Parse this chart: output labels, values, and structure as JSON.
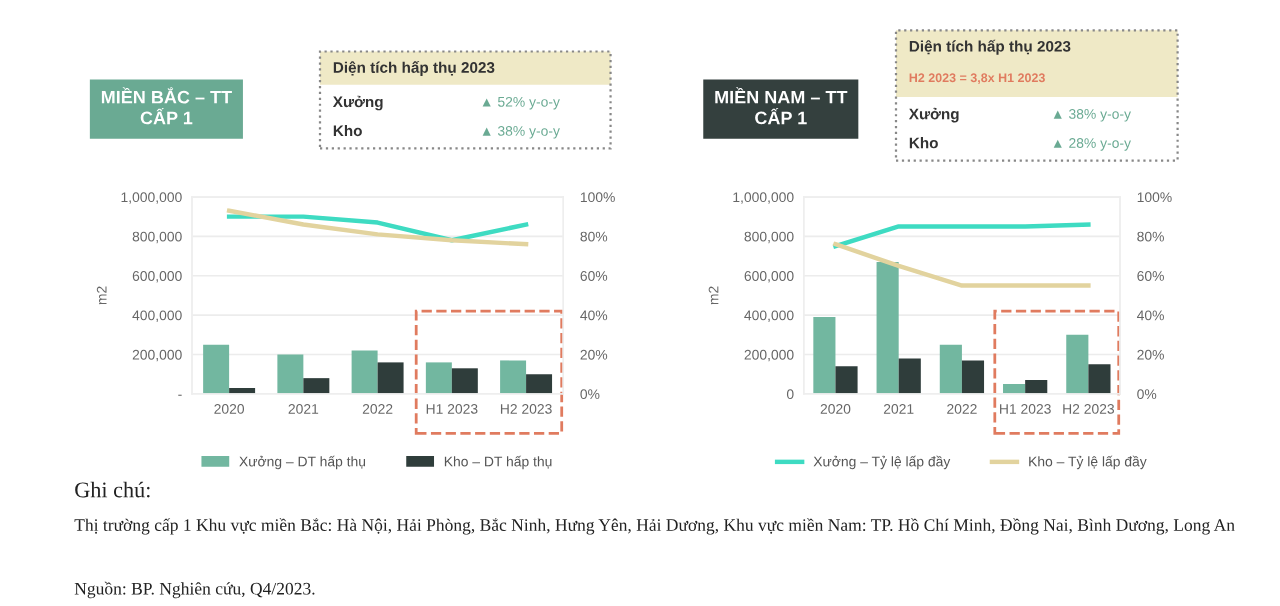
{
  "chart_data": [
    {
      "type": "bar",
      "title": "MIỀN BẮC – TT\nCẤP 1",
      "ylabel": "m2",
      "categories": [
        "2020",
        "2021",
        "2022",
        "H1 2023",
        "H2 2023"
      ],
      "series": [
        {
          "name": "Xưởng – DT hấp thụ",
          "color": "#72b7a0",
          "values": [
            250000,
            200000,
            220000,
            160000,
            170000
          ]
        },
        {
          "name": "Kho – DT hấp thụ",
          "color": "#2f3d3b",
          "values": [
            30000,
            80000,
            160000,
            130000,
            100000
          ]
        },
        {
          "type": "line",
          "axis": "y2",
          "color": "#3edbc2",
          "values": [
            90,
            90,
            87,
            78,
            86
          ]
        },
        {
          "type": "line",
          "axis": "y2",
          "color": "#e2d39e",
          "values": [
            93,
            86,
            81,
            78,
            76
          ]
        }
      ],
      "ylim": [
        0,
        1000000
      ],
      "yticks": [
        {
          "value": 0,
          "label": "-"
        },
        {
          "value": 200000,
          "label": "200,000"
        },
        {
          "value": 400000,
          "label": "400,000"
        },
        {
          "value": 600000,
          "label": "600,000"
        },
        {
          "value": 800000,
          "label": "800,000"
        },
        {
          "value": 1000000,
          "label": "1,000,000"
        }
      ],
      "y2lim": [
        0,
        100
      ],
      "y2ticks": [
        {
          "value": 0,
          "label": "0%"
        },
        {
          "value": 20,
          "label": "20%"
        },
        {
          "value": 40,
          "label": "40%"
        },
        {
          "value": 60,
          "label": "60%"
        },
        {
          "value": 80,
          "label": "80%"
        },
        {
          "value": 100,
          "label": "100%"
        }
      ],
      "grid": "y",
      "legend": "bottom",
      "annotations": [
        "Diện tích hấp thụ 2023",
        "Xưởng",
        "▲ 52% y-o-y",
        "Kho",
        "▲ 38% y-o-y",
        "Ghi chú:",
        "Thị trường cấp 1 Khu vực miền Bắc: Hà Nội, Hải Phòng, Bắc Ninh, Hưng Yên, Hải Dương, Khu vực miền Nam: TP. Hồ Chí Minh, Đồng Nai, Bình Dương, Long An",
        "Nguồn: BP. Nghiên cứu, Q4/2023."
      ]
    },
    {
      "type": "bar",
      "title": "MIỀN NAM – TT\nCẤP 1",
      "ylabel": "m2",
      "categories": [
        "2020",
        "2021",
        "2022",
        "H1 2023",
        "H2 2023"
      ],
      "series": [
        {
          "color": "#72b7a0",
          "values": [
            390000,
            670000,
            250000,
            50000,
            300000
          ]
        },
        {
          "color": "#2f3d3b",
          "values": [
            140000,
            180000,
            170000,
            70000,
            150000
          ]
        },
        {
          "name": "Xưởng – Tỷ lệ lấp đầy",
          "type": "line",
          "axis": "y2",
          "color": "#3edbc2",
          "values": [
            75,
            85,
            85,
            85,
            86
          ]
        },
        {
          "name": "Kho – Tỷ lệ lấp đầy",
          "type": "line",
          "axis": "y2",
          "color": "#e2d39e",
          "values": [
            76,
            65,
            55,
            55,
            55
          ]
        }
      ],
      "ylim": [
        0,
        1000000
      ],
      "yticks": [
        0,
        {
          "value": 200000,
          "label": "200,000"
        },
        {
          "value": 400000,
          "label": "400,000"
        },
        {
          "value": 600000,
          "label": "600,000"
        },
        {
          "value": 800000,
          "label": "800,000"
        },
        {
          "value": 1000000,
          "label": "1,000,000"
        }
      ],
      "y2lim": [
        0,
        100
      ],
      "y2ticks": [
        {
          "value": 0,
          "label": "0%"
        },
        {
          "value": 20,
          "label": "20%"
        },
        {
          "value": 40,
          "label": "40%"
        },
        {
          "value": 60,
          "label": "60%"
        },
        {
          "value": 80,
          "label": "80%"
        },
        {
          "value": 100,
          "label": "100%"
        }
      ],
      "grid": "y",
      "legend": "bottom",
      "annotations": [
        "Diện tích hấp thụ 2023",
        "H2 2023 = 3,8x H1 2023",
        "Xưởng",
        "▲ 38% y-o-y",
        "Kho",
        "▲ 28% y-o-y"
      ]
    }
  ]
}
